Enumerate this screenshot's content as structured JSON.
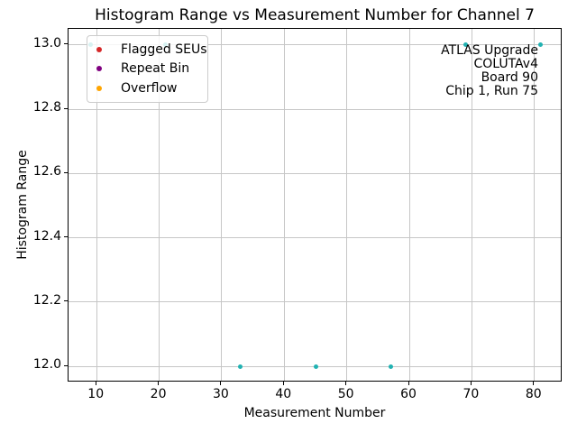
{
  "chart_data": {
    "type": "scatter",
    "title": "Histogram Range vs Measurement Number for Channel 7",
    "xlabel": "Measurement Number",
    "ylabel": "Histogram Range",
    "xlim": [
      5.5,
      84.5
    ],
    "ylim": [
      11.95,
      13.05
    ],
    "xticks": [
      10,
      20,
      30,
      40,
      50,
      60,
      70,
      80
    ],
    "xtick_labels": [
      "10",
      "20",
      "30",
      "40",
      "50",
      "60",
      "70",
      "80"
    ],
    "yticks": [
      12.0,
      12.2,
      12.4,
      12.6,
      12.8,
      13.0
    ],
    "ytick_labels": [
      "12.0",
      "12.2",
      "12.4",
      "12.6",
      "12.8",
      "13.0"
    ],
    "grid": true,
    "series": [
      {
        "name": "Histogram Range",
        "color": "#21b2b2",
        "x": [
          9,
          21,
          33,
          45,
          57,
          69,
          81
        ],
        "y": [
          13.0,
          13.0,
          12.0,
          12.0,
          12.0,
          13.0,
          13.0
        ]
      }
    ],
    "legend": {
      "position": "upper left",
      "entries": [
        {
          "label": "Flagged SEUs",
          "color": "#d62728"
        },
        {
          "label": "Repeat Bin",
          "color": "#800080"
        },
        {
          "label": "Overflow",
          "color": "#ffa500"
        }
      ]
    },
    "annotation": {
      "align": "right",
      "lines": [
        "ATLAS Upgrade",
        "COLUTAv4",
        "Board 90",
        "Chip 1, Run 75"
      ]
    }
  }
}
